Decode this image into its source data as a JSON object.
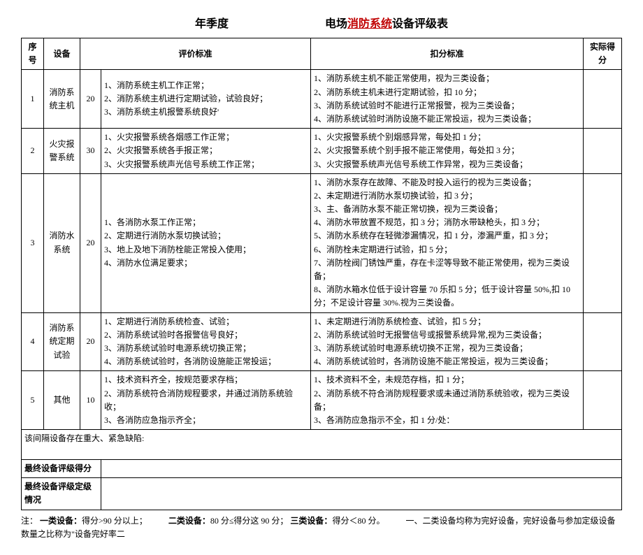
{
  "title": {
    "left": "年季度",
    "right_prefix": "电场",
    "red": "消防系统",
    "right_suffix": "设备评级表"
  },
  "headers": {
    "seq": "序号",
    "device": "设备",
    "crit_group": "评价标准",
    "deduct": "扣分标准",
    "actual": "实际得分"
  },
  "rows": [
    {
      "seq": "1",
      "device": "消防系统主机",
      "weight": "20",
      "criteria": [
        "1、消防系统主机工作正常；",
        "2、消防系统主机进行定期试验，试验良好；",
        "3、消防系统主机报警系统良好'"
      ],
      "deduct": [
        "1、消防系统主机不能正常使用，视为三类设备；",
        "2、消防系统主机未进行定期试验，扣 10 分；",
        "3、消防系统试验时不能进行正常报警，视为三类设备；",
        "4、消防系统试验时消防设施不能正常投运，视为三类设备；"
      ],
      "actual": ""
    },
    {
      "seq": "2",
      "device": "火灾报警系统",
      "weight": "30",
      "criteria": [
        "1、火灾报警系统各烟感工作正常；",
        "2、火灾报警系统各手报正常；",
        "3、火灾报警系统声光信号系统工作正常；"
      ],
      "deduct": [
        "1、火灾报警系统个别烟感异常，每处扣 1 分；",
        "2、火灾报警系统个别手报不能正常使用，每处扣 3 分；",
        "3、火灾报警系统声光信号系统工作异常，视为三类设备；"
      ],
      "actual": ""
    },
    {
      "seq": "3",
      "device": "消防水系统",
      "weight": "20",
      "criteria": [
        "1、各消防水泵工作正常；",
        "2、定期进行消防水泵切换试验；",
        "3、地上及地下消防栓能正常投入使用；",
        "4、消防水位满足要求；"
      ],
      "deduct": [
        "1、消防水泵存在故障、不能及时投入运行的视为三类设备；",
        "2、未定期进行消防水泵切换试验，扣 3 分；",
        "3、主、备消防水泵不能正常切换，视为三类设备；",
        "4、消防水带放置不规范，扣 3 分；消防水带缺枪头，扣 3 分；",
        "5、消防水系统存在轻微渗漏情况，扣 1 分，渗漏严重，扣 3 分；",
        "6、消防栓未定期进行试验，扣 5 分；",
        "7、消防栓阀门锈蚀严重，存在卡涩等导致不能正常使用，视为三类设备；",
        "8、消防水箱水位低于设计容量 70 乐扣 5 分；低于设计容量 50%,扣 10 分；不足设计容量 30%.视为三类设备。"
      ],
      "actual": ""
    },
    {
      "seq": "4",
      "device": "消防系统定期试验",
      "weight": "20",
      "criteria": [
        "1、定期进行消防系统检查、试验；",
        "2、消防系统试验时各报警信号良好；",
        "3、消防系统试验时电源系统切换正常；",
        "4、消防系统试验时，各消防设施能正常投运；"
      ],
      "deduct": [
        "1、未定期进行消防系统检查、试验，扣 5 分；",
        "2、消防系统试验时无报警信号或报警系统异常,视为三类设备；",
        "3、消防系统试验时电源系统切换不正常，视为三类设备；",
        "4、消防系统试验时，各消防设施不能正常投运，视为三类设备；"
      ],
      "actual": ""
    },
    {
      "seq": "5",
      "device": "其他",
      "weight": "10",
      "criteria": [
        "1、技术资料齐全，按规范要求存档；",
        "2、消防系统符合消防规程要求，并通过消防系统验收；",
        "3、各消防应急指示齐全；"
      ],
      "deduct": [
        "1、技术资料不全，未规范存档，扣 1 分；",
        "2、消防系统不符合消防规程要求或未通过消防系统验收，视为三类设备；",
        "3、各消防应急指示不全，扣 1 分/处："
      ],
      "actual": ""
    }
  ],
  "defect_row": "该间隔设备存在重大、紧急缺陷:",
  "final_score_label": "最终设备评级得分",
  "final_grade_label": "最终设备评级定级情况",
  "note": {
    "prefix": "注：",
    "c1_label": "一类设备：",
    "c1_text": "得分>90 分以上；",
    "c2_label": "二类设备：",
    "c2_text": "80 分≤得分这 90 分；",
    "c3_label": "三类设备：",
    "c3_text": "得分＜80 分。",
    "tail": "一、二类设备均称为完好设备，完好设备与参加定级设备数量之比称为\"设备完好率二"
  }
}
